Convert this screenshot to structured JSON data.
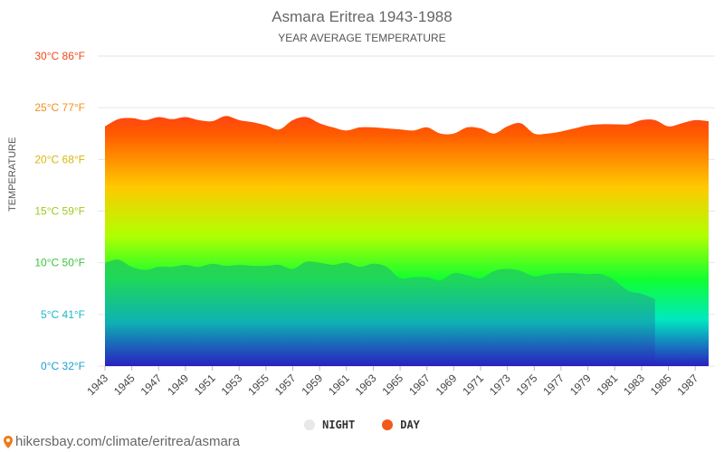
{
  "chart_data": {
    "type": "area",
    "title": "Asmara Eritrea 1943-1988",
    "subtitle": "YEAR AVERAGE TEMPERATURE",
    "ylabel": "TEMPERATURE",
    "xlabel": "",
    "ylim": [
      0,
      30
    ],
    "y_ticks": [
      {
        "value": 0,
        "label": "0°C 32°F",
        "color": "#1a9fd8"
      },
      {
        "value": 5,
        "label": "5°C 41°F",
        "color": "#1ab8c8"
      },
      {
        "value": 10,
        "label": "10°C 50°F",
        "color": "#3cc43c"
      },
      {
        "value": 15,
        "label": "15°C 59°F",
        "color": "#9ccc1a"
      },
      {
        "value": 20,
        "label": "20°C 68°F",
        "color": "#d8b80a"
      },
      {
        "value": 25,
        "label": "25°C 77°F",
        "color": "#f0901a"
      },
      {
        "value": 30,
        "label": "30°C 86°F",
        "color": "#f04a1a"
      }
    ],
    "x": [
      1943,
      1944,
      1945,
      1946,
      1947,
      1948,
      1949,
      1950,
      1951,
      1952,
      1953,
      1954,
      1955,
      1956,
      1957,
      1958,
      1959,
      1960,
      1961,
      1962,
      1963,
      1964,
      1965,
      1966,
      1967,
      1968,
      1969,
      1970,
      1971,
      1972,
      1973,
      1974,
      1975,
      1976,
      1977,
      1978,
      1979,
      1980,
      1981,
      1982,
      1983,
      1984,
      1985,
      1986,
      1987,
      1988
    ],
    "x_tick_labels": [
      "1943",
      "1945",
      "1947",
      "1949",
      "1951",
      "1953",
      "1955",
      "1957",
      "1959",
      "1961",
      "1963",
      "1965",
      "1967",
      "1969",
      "1971",
      "1973",
      "1975",
      "1977",
      "1979",
      "1981",
      "1983",
      "1985",
      "1987"
    ],
    "series": [
      {
        "name": "DAY",
        "values": [
          23.2,
          23.9,
          24.0,
          23.8,
          24.1,
          23.9,
          24.1,
          23.8,
          23.7,
          24.2,
          23.8,
          23.6,
          23.3,
          22.9,
          23.8,
          24.1,
          23.5,
          23.1,
          22.8,
          23.1,
          23.1,
          23.0,
          22.9,
          22.8,
          23.1,
          22.5,
          22.5,
          23.1,
          23.0,
          22.5,
          23.2,
          23.5,
          22.5,
          22.5,
          22.7,
          23.0,
          23.3,
          23.4,
          23.4,
          23.4,
          23.8,
          23.8,
          23.2,
          23.5,
          23.8,
          23.7
        ]
      },
      {
        "name": "NIGHT",
        "values": [
          10.0,
          10.3,
          9.6,
          9.3,
          9.6,
          9.6,
          9.8,
          9.6,
          9.9,
          9.7,
          9.8,
          9.7,
          9.7,
          9.8,
          9.4,
          10.1,
          10.0,
          9.8,
          10.0,
          9.6,
          9.9,
          9.6,
          8.5,
          8.6,
          8.6,
          8.3,
          9.0,
          8.8,
          8.5,
          9.2,
          9.4,
          9.2,
          8.7,
          8.9,
          9.0,
          9.0,
          8.9,
          8.9,
          8.3,
          7.3,
          7.0,
          6.5,
          null,
          null,
          null,
          null
        ]
      }
    ],
    "legend": [
      {
        "label": "NIGHT",
        "color": "#e8e8e8"
      },
      {
        "label": "DAY",
        "color": "#f05a1a"
      }
    ],
    "legend_position": "bottom-center",
    "grid": true
  },
  "footer": {
    "source": "hikersbay.com/climate/eritrea/asmara"
  }
}
